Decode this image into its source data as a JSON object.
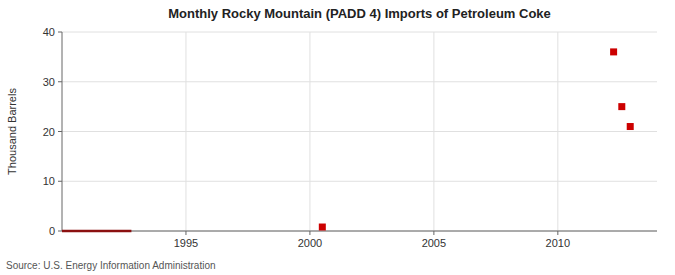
{
  "chart_data": {
    "type": "scatter",
    "title": "Monthly Rocky Mountain (PADD 4) Imports of Petroleum Coke",
    "y_label": "Thousand Barrels",
    "source": "Source: U.S. Energy Information Administration",
    "series": [
      {
        "type": "line",
        "color": "#8b1010",
        "line_style": "solid",
        "x": [
          1990.0,
          1992.8
        ],
        "values": [
          0,
          0
        ]
      },
      {
        "type": "scatter",
        "color": "#cc0000",
        "marker": "square",
        "x": [
          2000.5,
          2012.25,
          2012.58,
          2012.92
        ],
        "values": [
          0.8,
          36,
          25,
          21
        ]
      }
    ],
    "xlim": [
      1990,
      2014.0
    ],
    "ylim": [
      0,
      40
    ],
    "xticks": [
      1995,
      2000,
      2005,
      2010
    ],
    "yticks": [
      0,
      10,
      20,
      30,
      40
    ],
    "grid": true
  }
}
